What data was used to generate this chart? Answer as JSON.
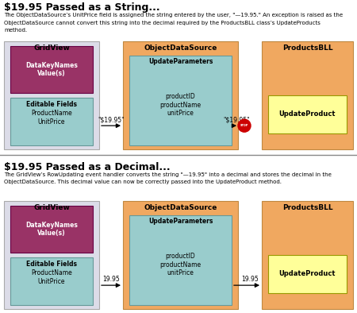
{
  "title1": "$19.95 Passed as a String...",
  "desc1": "The ObjectDataSource’s UnitPrice field is assigned the string entered by the user, \"—19.95.\" An exception is raised as the\nObjectDataSource cannot convert this string into the decimal required by the ProductsBLL class’s UpdateProducts\nmethod.",
  "title2": "$19.95 Passed as a Decimal...",
  "desc2": "The GridView’s RowUpdating event handler converts the string \"—19.95\" into a decimal and stores the decimal in the\nObjectDataSource. This decimal value can now be correctly passed into the UpdateProduct method.",
  "color_white": "#ffffff",
  "color_gridview_bg": "#dcdce8",
  "color_purple": "#993366",
  "color_teal": "#99cccc",
  "color_orange": "#f0a860",
  "color_yellow": "#ffff99",
  "color_stop": "#cc0000",
  "color_border_gray": "#aaaaaa",
  "color_border_teal": "#669999",
  "color_border_orange": "#c08840",
  "color_border_purple": "#660044",
  "label_gridview": "GridView",
  "label_datakey": "DataKeyNames\nValue(s)",
  "label_editable": "Editable Fields",
  "label_fields": "ProductName\nUnitPrice",
  "label_ods": "ObjectDataSource",
  "label_params": "UpdateParameters",
  "label_param_items": "productID\nproductName\nunitPrice",
  "label_bll": "ProductsBLL",
  "label_update": "UpdateProduct",
  "arrow_str_label": "\"$19.95\"",
  "arrow_dec_label": "19.95"
}
